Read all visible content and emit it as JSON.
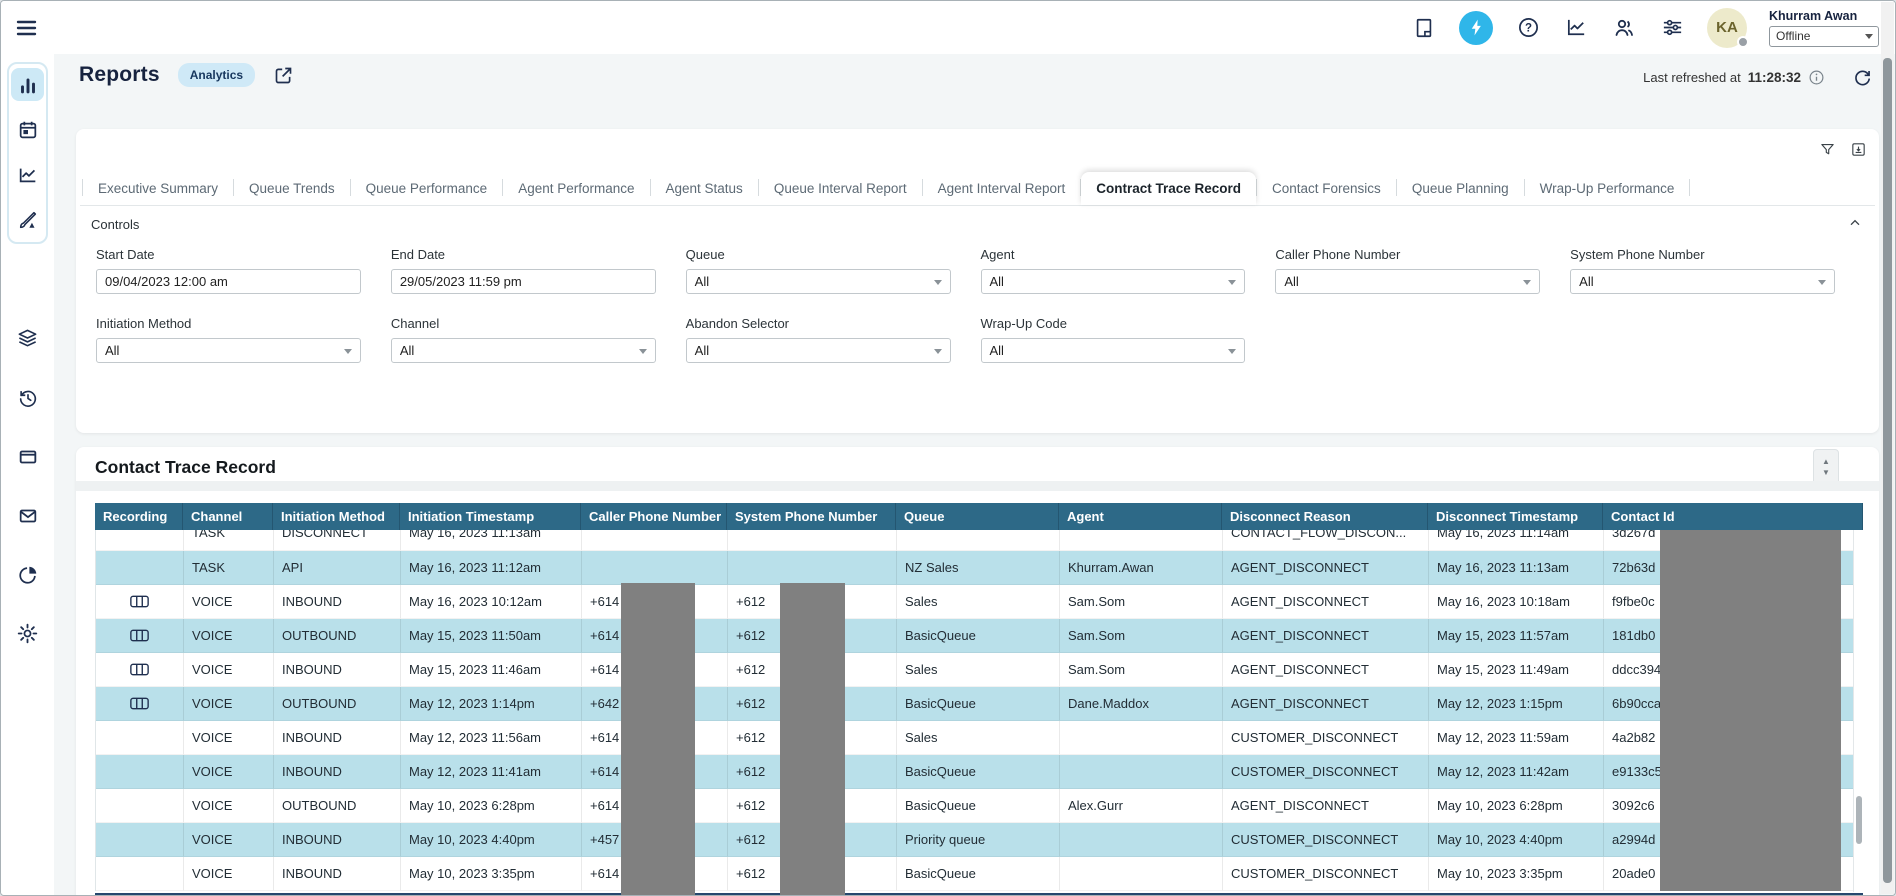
{
  "colors": {
    "accent": "#2fb6e9",
    "table_header": "#2d6987",
    "row_alt": "#b9e0ea",
    "badge_bg": "#cfe9f7",
    "redaction": "#808080",
    "navy": "#1f2f4f"
  },
  "topbar": {
    "icons": [
      {
        "name": "notes"
      },
      {
        "name": "bolt",
        "active": true
      },
      {
        "name": "help"
      },
      {
        "name": "metrics"
      },
      {
        "name": "contacts"
      },
      {
        "name": "settings-sliders"
      }
    ],
    "user": {
      "initials": "KA",
      "name": "Khurram Awan",
      "status": "Offline"
    }
  },
  "sidebar": {
    "group_items": [
      {
        "name": "bar-chart",
        "active": true
      },
      {
        "name": "calendar"
      },
      {
        "name": "line-chart"
      },
      {
        "name": "design"
      }
    ],
    "items": [
      {
        "name": "layers"
      },
      {
        "name": "history"
      },
      {
        "name": "window"
      },
      {
        "name": "mail"
      },
      {
        "name": "pie-chart"
      },
      {
        "name": "gear"
      }
    ]
  },
  "page": {
    "title": "Reports",
    "badge": "Analytics",
    "last_refreshed_label": "Last refreshed at",
    "last_refreshed_time": "11:28:32"
  },
  "tabs": {
    "active": "Contract Trace Record",
    "items": [
      "Executive Summary",
      "Queue Trends",
      "Queue Performance",
      "Agent Performance",
      "Agent Status",
      "Queue Interval Report",
      "Agent Interval Report",
      "Contract Trace Record",
      "Contact Forensics",
      "Queue Planning",
      "Wrap-Up Performance"
    ]
  },
  "controls": {
    "label": "Controls",
    "filters": [
      {
        "label": "Start Date",
        "value": "09/04/2023 12:00 am",
        "control": "input"
      },
      {
        "label": "End Date",
        "value": "29/05/2023 11:59 pm",
        "control": "input"
      },
      {
        "label": "Queue",
        "value": "All",
        "control": "select"
      },
      {
        "label": "Agent",
        "value": "All",
        "control": "select"
      },
      {
        "label": "Caller Phone Number",
        "value": "All",
        "control": "select"
      },
      {
        "label": "System Phone Number",
        "value": "All",
        "control": "select"
      },
      {
        "label": "Initiation Method",
        "value": "All",
        "control": "select"
      },
      {
        "label": "Channel",
        "value": "All",
        "control": "select"
      },
      {
        "label": "Abandon Selector",
        "value": "All",
        "control": "select"
      },
      {
        "label": "Wrap-Up Code",
        "value": "All",
        "control": "select"
      }
    ]
  },
  "table": {
    "title": "Contact Trace Record",
    "columns": [
      "Recording",
      "Channel",
      "Initiation Method",
      "Initiation Timestamp",
      "Caller Phone Number",
      "System Phone Number",
      "Queue",
      "Agent",
      "Disconnect Reason",
      "Disconnect Timestamp",
      "Contact Id"
    ],
    "partial_row": {
      "recording": false,
      "channel": "TASK",
      "initiation_method": "DISCONNECT",
      "initiation_timestamp": "May 16, 2023 11:13am",
      "caller_phone": "",
      "system_phone": "",
      "queue": "",
      "agent": "",
      "disconnect_reason": "CONTACT_FLOW_DISCON...",
      "disconnect_timestamp": "May 16, 2023 11:14am",
      "contact_id": "3d267d"
    },
    "rows": [
      {
        "recording": false,
        "channel": "TASK",
        "initiation_method": "API",
        "initiation_timestamp": "May 16, 2023 11:12am",
        "caller_phone": "",
        "system_phone": "",
        "queue": "NZ Sales",
        "agent": "Khurram.Awan",
        "disconnect_reason": "AGENT_DISCONNECT",
        "disconnect_timestamp": "May 16, 2023 11:13am",
        "contact_id": "72b63d"
      },
      {
        "recording": true,
        "channel": "VOICE",
        "initiation_method": "INBOUND",
        "initiation_timestamp": "May 16, 2023 10:12am",
        "caller_phone": "+614",
        "system_phone": "+612",
        "queue": "Sales",
        "agent": "Sam.Som",
        "disconnect_reason": "AGENT_DISCONNECT",
        "disconnect_timestamp": "May 16, 2023 10:18am",
        "contact_id": "f9fbe0c"
      },
      {
        "recording": true,
        "channel": "VOICE",
        "initiation_method": "OUTBOUND",
        "initiation_timestamp": "May 15, 2023 11:50am",
        "caller_phone": "+614",
        "system_phone": "+612",
        "queue": "BasicQueue",
        "agent": "Sam.Som",
        "disconnect_reason": "AGENT_DISCONNECT",
        "disconnect_timestamp": "May 15, 2023 11:57am",
        "contact_id": "181db0"
      },
      {
        "recording": true,
        "channel": "VOICE",
        "initiation_method": "INBOUND",
        "initiation_timestamp": "May 15, 2023 11:46am",
        "caller_phone": "+614",
        "system_phone": "+612",
        "queue": "Sales",
        "agent": "Sam.Som",
        "disconnect_reason": "AGENT_DISCONNECT",
        "disconnect_timestamp": "May 15, 2023 11:49am",
        "contact_id": "ddcc394"
      },
      {
        "recording": true,
        "channel": "VOICE",
        "initiation_method": "OUTBOUND",
        "initiation_timestamp": "May 12, 2023 1:14pm",
        "caller_phone": "+642",
        "system_phone": "+612",
        "queue": "BasicQueue",
        "agent": "Dane.Maddox",
        "disconnect_reason": "AGENT_DISCONNECT",
        "disconnect_timestamp": "May 12, 2023 1:15pm",
        "contact_id": "6b90cca"
      },
      {
        "recording": false,
        "channel": "VOICE",
        "initiation_method": "INBOUND",
        "initiation_timestamp": "May 12, 2023 11:56am",
        "caller_phone": "+614",
        "system_phone": "+612",
        "queue": "Sales",
        "agent": "",
        "disconnect_reason": "CUSTOMER_DISCONNECT",
        "disconnect_timestamp": "May 12, 2023 11:59am",
        "contact_id": "4a2b82"
      },
      {
        "recording": false,
        "channel": "VOICE",
        "initiation_method": "INBOUND",
        "initiation_timestamp": "May 12, 2023 11:41am",
        "caller_phone": "+614",
        "system_phone": "+612",
        "queue": "BasicQueue",
        "agent": "",
        "disconnect_reason": "CUSTOMER_DISCONNECT",
        "disconnect_timestamp": "May 12, 2023 11:42am",
        "contact_id": "e9133c5"
      },
      {
        "recording": false,
        "channel": "VOICE",
        "initiation_method": "OUTBOUND",
        "initiation_timestamp": "May 10, 2023 6:28pm",
        "caller_phone": "+614",
        "system_phone": "+612",
        "queue": "BasicQueue",
        "agent": "Alex.Gurr",
        "disconnect_reason": "AGENT_DISCONNECT",
        "disconnect_timestamp": "May 10, 2023 6:28pm",
        "contact_id": "3092c6"
      },
      {
        "recording": false,
        "channel": "VOICE",
        "initiation_method": "INBOUND",
        "initiation_timestamp": "May 10, 2023 4:40pm",
        "caller_phone": "+457",
        "system_phone": "+612",
        "queue": "Priority queue",
        "agent": "",
        "disconnect_reason": "CUSTOMER_DISCONNECT",
        "disconnect_timestamp": "May 10, 2023 4:40pm",
        "contact_id": "a2994d"
      },
      {
        "recording": false,
        "channel": "VOICE",
        "initiation_method": "INBOUND",
        "initiation_timestamp": "May 10, 2023 3:35pm",
        "caller_phone": "+614",
        "system_phone": "+612",
        "queue": "BasicQueue",
        "agent": "",
        "disconnect_reason": "CUSTOMER_DISCONNECT",
        "disconnect_timestamp": "May 10, 2023 3:35pm",
        "contact_id": "20ade0"
      }
    ]
  }
}
